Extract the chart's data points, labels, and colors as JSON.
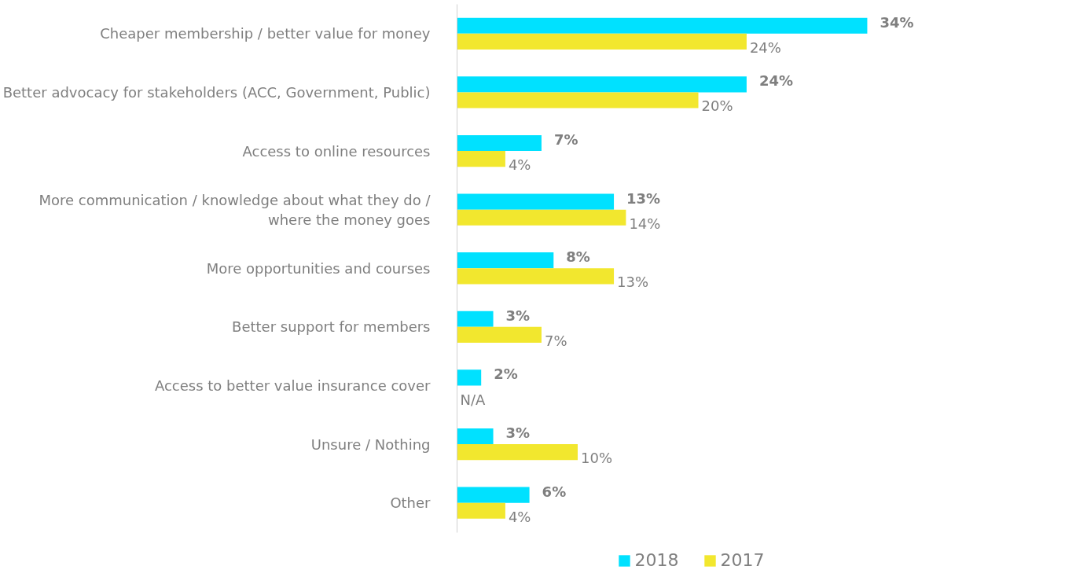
{
  "chart_data": {
    "type": "bar",
    "orientation": "horizontal",
    "categories": [
      "Cheaper membership / better value for money",
      "Better advocacy for stakeholders (ACC, Government, Public)",
      "Access to online resources",
      "More communication / knowledge about what they do / where the money goes",
      "More opportunities and courses",
      "Better support for members",
      "Access to better value insurance cover",
      "Unsure / Nothing",
      "Other"
    ],
    "series": [
      {
        "name": "2018",
        "color": "#00e1ff",
        "values": [
          34,
          24,
          7,
          13,
          8,
          3,
          2,
          3,
          6
        ],
        "value_labels": [
          "34%",
          "24%",
          "7%",
          "13%",
          "8%",
          "3%",
          "2%",
          "3%",
          "6%"
        ]
      },
      {
        "name": "2017",
        "color": "#f2e72e",
        "values": [
          24,
          20,
          4,
          14,
          13,
          7,
          null,
          10,
          4
        ],
        "value_labels": [
          "24%",
          "20%",
          "4%",
          "14%",
          "13%",
          "7%",
          "N/A",
          "10%",
          "4%"
        ]
      }
    ],
    "legend": "bottom",
    "grid": false
  }
}
